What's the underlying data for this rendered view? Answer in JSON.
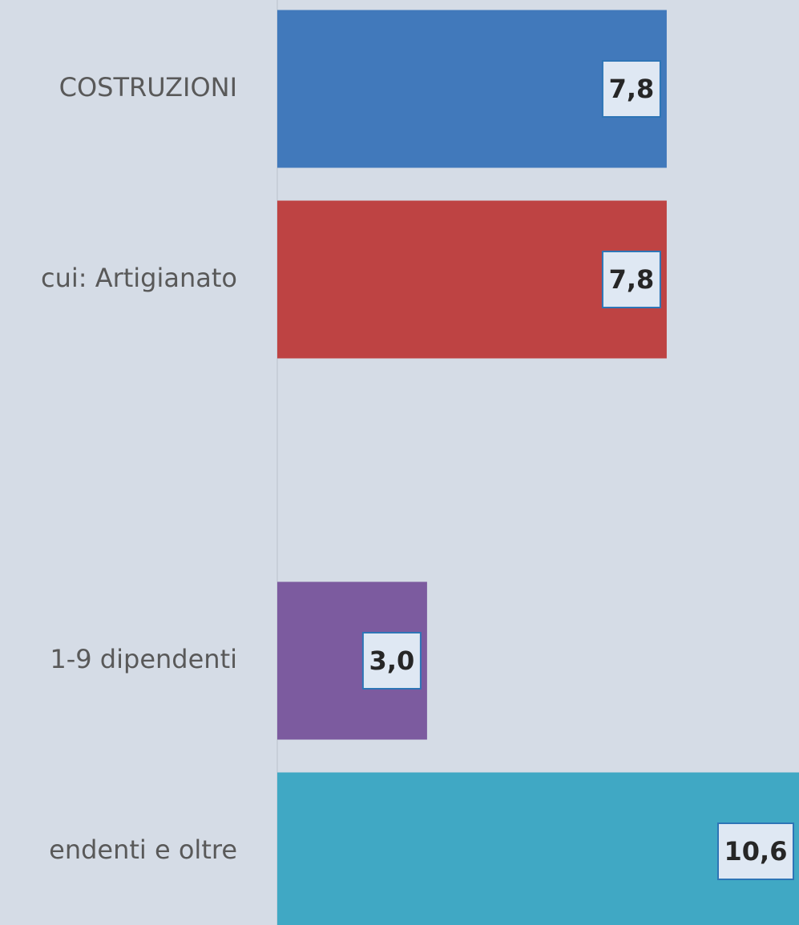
{
  "chart_data": {
    "type": "bar",
    "orientation": "horizontal",
    "categories": [
      "COSTRUZIONI",
      "cui: Artigianato",
      null,
      "1-9 dipendenti",
      "endenti e oltre"
    ],
    "values": [
      7.8,
      7.8,
      null,
      3.0,
      10.6
    ],
    "value_labels": [
      "7,8",
      "7,8",
      null,
      "3,0",
      "10,6"
    ],
    "colors": [
      "#4179bb",
      "#be4343",
      null,
      "#7c5b9f",
      "#40a8c4"
    ]
  }
}
